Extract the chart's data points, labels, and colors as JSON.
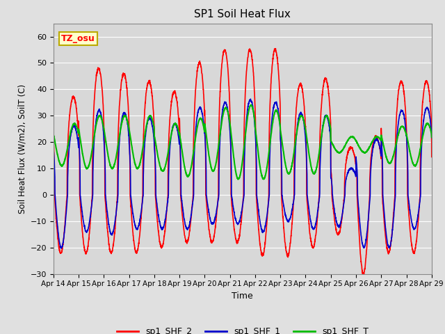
{
  "title": "SP1 Soil Heat Flux",
  "xlabel": "Time",
  "ylabel": "Soil Heat Flux (W/m2), SoilT (C)",
  "ylim": [
    -30,
    65
  ],
  "xlim": [
    0,
    360
  ],
  "background_color": "#e0e0e0",
  "plot_bg_color": "#d8d8d8",
  "line_colors": {
    "sp1_SHF_2": "#ff0000",
    "sp1_SHF_1": "#0000cc",
    "sp1_SHF_T": "#00bb00"
  },
  "line_widths": {
    "sp1_SHF_2": 1.2,
    "sp1_SHF_1": 1.2,
    "sp1_SHF_T": 1.5
  },
  "annotation_text": "TZ_osu",
  "tick_labels": [
    "Apr 14",
    "Apr 15",
    "Apr 16",
    "Apr 17",
    "Apr 18",
    "Apr 19",
    "Apr 20",
    "Apr 21",
    "Apr 22",
    "Apr 23",
    "Apr 24",
    "Apr 25",
    "Apr 26",
    "Apr 27",
    "Apr 28",
    "Apr 29"
  ],
  "tick_positions": [
    0,
    24,
    48,
    72,
    96,
    120,
    144,
    168,
    192,
    216,
    240,
    264,
    288,
    312,
    336,
    360
  ],
  "yticks": [
    -30,
    -20,
    -10,
    0,
    10,
    20,
    30,
    40,
    50,
    60
  ],
  "shf2_day_peaks": [
    37,
    48,
    46,
    43,
    39,
    50,
    55,
    55,
    55,
    42,
    44,
    18,
    22,
    43,
    43,
    25
  ],
  "shf2_day_negs": [
    22,
    22,
    22,
    22,
    20,
    18,
    18,
    18,
    23,
    23,
    20,
    15,
    30,
    22,
    22,
    22
  ],
  "shf1_day_peaks": [
    26,
    32,
    31,
    29,
    27,
    33,
    35,
    36,
    35,
    31,
    30,
    10,
    21,
    32,
    33,
    32
  ],
  "shf1_day_negs": [
    20,
    14,
    15,
    13,
    13,
    13,
    11,
    11,
    14,
    10,
    13,
    12,
    20,
    20,
    13,
    13
  ],
  "shft_base": [
    19,
    20,
    20,
    20,
    18,
    18,
    21,
    20,
    19,
    19,
    19,
    19,
    19,
    19,
    19,
    18
  ],
  "shft_amp": [
    8,
    10,
    10,
    10,
    9,
    11,
    12,
    14,
    13,
    11,
    11,
    3,
    3,
    7,
    8,
    8
  ]
}
